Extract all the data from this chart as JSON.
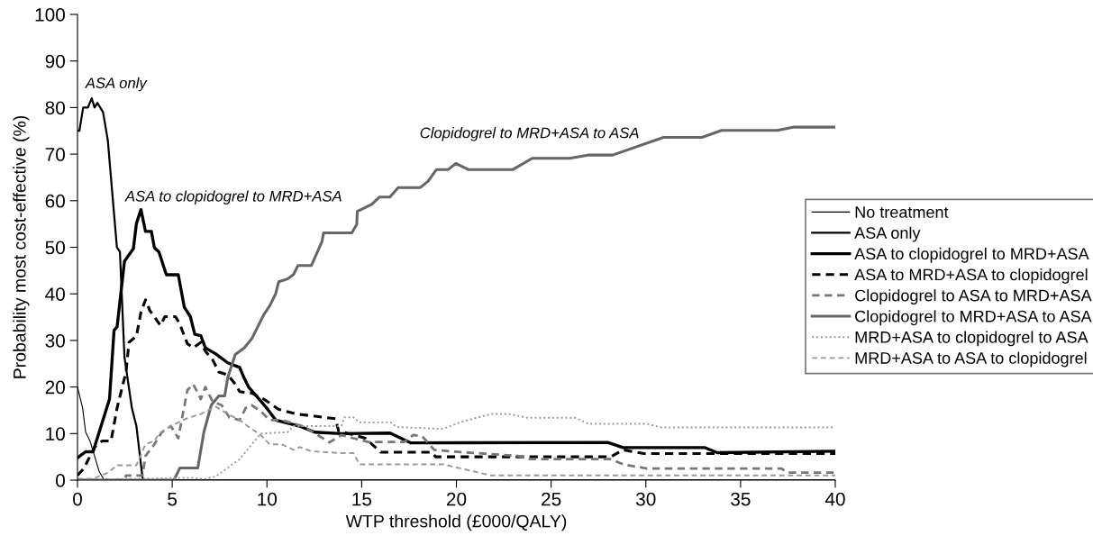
{
  "chart_data": {
    "type": "line",
    "xlabel": "WTP threshold (£000/QALY)",
    "ylabel": "Probability most cost-effective (%)",
    "xlim": [
      0,
      40
    ],
    "xticks": [
      0,
      5,
      10,
      15,
      20,
      25,
      30,
      35,
      40
    ],
    "ylim": [
      0,
      100
    ],
    "yticks": [
      0,
      10,
      20,
      30,
      40,
      50,
      60,
      70,
      80,
      90,
      100
    ],
    "grid": false,
    "legend": "right",
    "marker": "none",
    "annotations": [
      "ASA only",
      "ASA to clopidogrel to MRD+ASA",
      "Clopidogrel to MRD+ASA to ASA"
    ],
    "series": [
      {
        "name": "No treatment",
        "color": "#000000",
        "line_style": "solid",
        "x": [
          0,
          0.27,
          0.43,
          0.66,
          0.9,
          1.14,
          1.37,
          1.6,
          40
        ],
        "values": [
          20,
          15.5,
          10.3,
          8.4,
          5.2,
          1.9,
          0.3,
          0,
          0
        ]
      },
      {
        "name": "ASA only",
        "color": "#000000",
        "line_style": "solid",
        "x": [
          0,
          0.1,
          0.3,
          0.55,
          0.75,
          0.9,
          1.05,
          1.2,
          1.35,
          1.6,
          2.08,
          2.24,
          2.48,
          2.87,
          3.11,
          3.43,
          3.5,
          40
        ],
        "values": [
          75,
          75,
          80,
          80,
          82,
          80,
          81,
          80,
          79,
          73,
          50,
          49,
          26.4,
          15.5,
          11.6,
          0.6,
          0,
          0
        ]
      },
      {
        "name": "ASA to clopidogrel to MRD+ASA",
        "color": "#000000",
        "line_style": "solid",
        "x": [
          0,
          0.43,
          0.82,
          1.69,
          1.93,
          2.09,
          2.48,
          2.95,
          3.11,
          3.35,
          3.59,
          3.9,
          4.06,
          4.3,
          4.69,
          5.32,
          5.64,
          5.96,
          6.19,
          6.51,
          6.75,
          7.3,
          7.93,
          8.56,
          8.8,
          9.03,
          9.59,
          9.98,
          10.46,
          11.72,
          12.51,
          13.93,
          16.5,
          17.6,
          27.99,
          28.8,
          33.1,
          33.76,
          40
        ],
        "values": [
          4.8,
          6.1,
          6.1,
          17.4,
          32.2,
          32.9,
          47,
          49.7,
          55.1,
          58.1,
          53.4,
          53.4,
          49.9,
          49,
          44.1,
          44.1,
          37.1,
          35.1,
          31.3,
          31,
          28.4,
          27.1,
          25.2,
          24.2,
          21.9,
          20,
          17.4,
          15.5,
          12.9,
          11.6,
          10.3,
          10,
          10.1,
          8,
          8.1,
          7,
          7,
          5.9,
          6.2
        ]
      },
      {
        "name": "ASA to MRD+ASA to clopidogrel",
        "color": "#000000",
        "line_style": "dashed",
        "x": [
          0,
          0.35,
          0.9,
          1.3,
          1.77,
          2.09,
          2.56,
          2.72,
          3.11,
          3.35,
          3.59,
          3.82,
          4.38,
          4.61,
          5.17,
          5.4,
          5.8,
          6.11,
          6.51,
          6.75,
          7.14,
          7.46,
          7.93,
          8.33,
          8.56,
          9.19,
          9.83,
          10.62,
          11.56,
          13.62,
          13.78,
          15.2,
          16.0,
          18.67,
          18.91,
          28.15,
          28.8,
          29.9,
          40
        ],
        "values": [
          1,
          2.6,
          7.1,
          8.4,
          8.4,
          15.5,
          23.2,
          29.6,
          30.9,
          36.1,
          38.7,
          36.4,
          33.2,
          35.1,
          35.1,
          33.5,
          29.3,
          28.4,
          29.6,
          27.7,
          25.8,
          23.2,
          22.6,
          20.6,
          19,
          18.7,
          17.4,
          15.2,
          14.2,
          13.2,
          10.6,
          9,
          6,
          6,
          5,
          5,
          6.5,
          5.7,
          5.7
        ]
      },
      {
        "name": "Clopidogrel to ASA to MRD+ASA",
        "color": "#777777",
        "line_style": "dashed",
        "x": [
          0,
          2.5,
          2.56,
          3.43,
          3.59,
          4.06,
          4.45,
          4.93,
          5.32,
          5.8,
          6.11,
          6.51,
          6.75,
          7.14,
          7.61,
          8.01,
          8.56,
          8.88,
          9.19,
          9.67,
          10.14,
          10.77,
          11.88,
          12.67,
          13.3,
          13.93,
          14.57,
          15.35,
          17.25,
          17.73,
          18.2,
          18.83,
          19.62,
          23.25,
          23.89,
          28.15,
          28.8,
          30.05,
          37.16,
          37.47,
          40
        ],
        "values": [
          0,
          0,
          1,
          1,
          5.2,
          7.7,
          10.3,
          11.6,
          9,
          19.3,
          20.6,
          17.4,
          20,
          16.8,
          16.1,
          13.5,
          12.9,
          15.5,
          16.1,
          14.8,
          12.9,
          12.9,
          11.6,
          9.7,
          8.1,
          9.7,
          9,
          8.2,
          8.2,
          9.7,
          9.4,
          6.5,
          6.2,
          5.2,
          4.5,
          4.5,
          3.4,
          2.5,
          2.5,
          1.6,
          1.6
        ]
      },
      {
        "name": "Clopidogrel to MRD+ASA to ASA",
        "color": "#666666",
        "line_style": "solid",
        "x": [
          0,
          5.09,
          5.4,
          6.35,
          6.67,
          7.06,
          7.46,
          7.77,
          7.93,
          8.33,
          8.8,
          9.19,
          9.51,
          9.83,
          10.14,
          10.46,
          10.62,
          11.09,
          11.41,
          11.64,
          12.35,
          12.91,
          12.99,
          14.48,
          14.74,
          14.77,
          15.53,
          15.94,
          16.49,
          16.93,
          18.08,
          18.51,
          18.95,
          19.57,
          19.97,
          20.62,
          22.99,
          24.0,
          25.97,
          26.94,
          28.25,
          30.93,
          32.96,
          34.0,
          36.94,
          37.82,
          40
        ],
        "values": [
          0,
          0,
          2.6,
          2.6,
          10.3,
          16.1,
          18.1,
          18.1,
          22,
          27,
          28.4,
          30.3,
          32.9,
          35.5,
          37.4,
          40,
          42.6,
          43.2,
          44.2,
          46.1,
          46.1,
          51.3,
          53.1,
          53.1,
          54.9,
          57.7,
          59.2,
          60.8,
          60.8,
          62.8,
          62.8,
          64.2,
          66.7,
          66.7,
          68,
          66.7,
          66.7,
          69.1,
          69.1,
          69.8,
          69.8,
          73.6,
          73.6,
          75.1,
          75.1,
          75.8,
          75.8
        ]
      },
      {
        "name": "MRD+ASA to clopidogrel to ASA",
        "color": "#999999",
        "line_style": "dotted",
        "x": [
          0,
          6.03,
          6.67,
          7.3,
          8.56,
          9.67,
          11.09,
          11.41,
          13.93,
          14.09,
          14.57,
          14.88,
          16.54,
          16.85,
          19.3,
          20.25,
          21.83,
          22.78,
          23.73,
          26.26,
          26.97,
          30.05,
          30.84,
          40
        ],
        "values": [
          0.1,
          0.5,
          0.2,
          0.8,
          4.5,
          10,
          10.3,
          11.6,
          11.6,
          13.5,
          13.5,
          12.4,
          12.4,
          11.4,
          11,
          12.5,
          14.2,
          14.2,
          13.4,
          13.4,
          12.1,
          12.1,
          11.3,
          11.3
        ]
      },
      {
        "name": "MRD+ASA to ASA to clopidogrel",
        "color": "#999999",
        "line_style": "dashed",
        "x": [
          0,
          0.82,
          1.61,
          2.09,
          3.11,
          3.59,
          4.06,
          4.3,
          4.93,
          5.72,
          6.51,
          7.3,
          7.93,
          8.56,
          9.19,
          9.67,
          10.14,
          10.77,
          11.41,
          11.72,
          12.35,
          13.93,
          14.57,
          14.88,
          19.3,
          21.83,
          40
        ],
        "values": [
          0.3,
          0.3,
          1.6,
          3.2,
          3.2,
          7.7,
          8.4,
          10,
          11.6,
          13.2,
          14.2,
          15.8,
          14.2,
          12.9,
          11,
          9.7,
          7.7,
          7.7,
          6.5,
          7.1,
          6.2,
          5.8,
          5.8,
          3.4,
          3.4,
          1,
          1
        ]
      }
    ]
  }
}
